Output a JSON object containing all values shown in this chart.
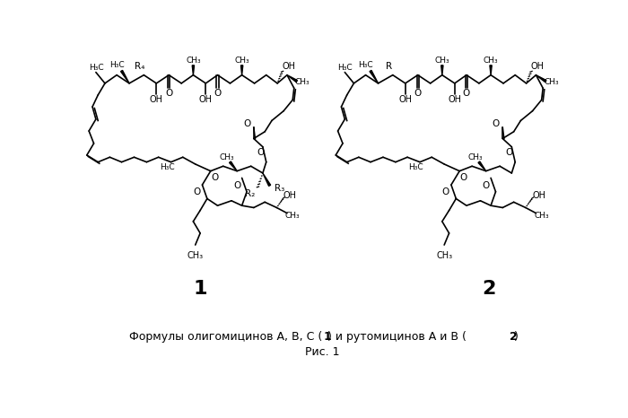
{
  "background_color": "#ffffff",
  "figure_width": 7.0,
  "figure_height": 4.66,
  "dpi": 100,
  "caption_line1_normal": "Формулы олигомицинов А, В, С (",
  "caption_label1": "1",
  "caption_middle": ") и рутомицинов А и В (",
  "caption_label2": "2",
  "caption_end": ")",
  "caption_line2": "Рис. 1",
  "label1": "1",
  "label2": "2",
  "text_color": "#000000",
  "structure_color": "#000000"
}
